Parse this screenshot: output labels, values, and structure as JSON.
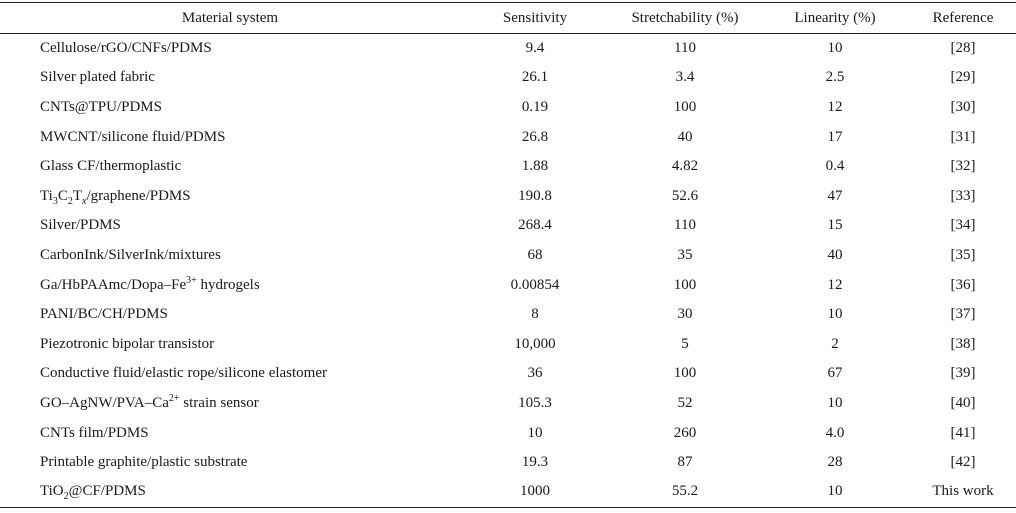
{
  "table": {
    "headers": {
      "material": "Material system",
      "sensitivity": "Sensitivity",
      "stretchability": "Stretchability (%)",
      "linearity": "Linearity (%)",
      "reference": "Reference"
    },
    "rows": [
      {
        "material": "Cellulose/rGO/CNFs/PDMS",
        "sensitivity": "9.4",
        "stretchability": "110",
        "linearity": "10",
        "reference": "[28]"
      },
      {
        "material": "Silver plated fabric",
        "sensitivity": "26.1",
        "stretchability": "3.4",
        "linearity": "2.5",
        "reference": "[29]"
      },
      {
        "material": "CNTs@TPU/PDMS",
        "sensitivity": "0.19",
        "stretchability": "100",
        "linearity": "12",
        "reference": "[30]"
      },
      {
        "material": "MWCNT/silicone fluid/PDMS",
        "sensitivity": "26.8",
        "stretchability": "40",
        "linearity": "17",
        "reference": "[31]"
      },
      {
        "material": "Glass CF/thermoplastic",
        "sensitivity": "1.88",
        "stretchability": "4.82",
        "linearity": "0.4",
        "reference": "[32]"
      },
      {
        "material_parts": [
          "Ti",
          "3",
          "C",
          "2",
          "T",
          "x",
          "/graphene/PDMS"
        ],
        "sensitivity": "190.8",
        "stretchability": "52.6",
        "linearity": "47",
        "reference": "[33]"
      },
      {
        "material": "Silver/PDMS",
        "sensitivity": "268.4",
        "stretchability": "110",
        "linearity": "15",
        "reference": "[34]"
      },
      {
        "material": "CarbonInk/SilverInk/mixtures",
        "sensitivity": "68",
        "stretchability": "35",
        "linearity": "40",
        "reference": "[35]"
      },
      {
        "material_parts": [
          "Ga/HbPAAmc/Dopa–Fe",
          "3+",
          " hydrogels"
        ],
        "sensitivity": "0.00854",
        "stretchability": "100",
        "linearity": "12",
        "reference": "[36]"
      },
      {
        "material": "PANI/BC/CH/PDMS",
        "sensitivity": "8",
        "stretchability": "30",
        "linearity": "10",
        "reference": "[37]"
      },
      {
        "material": "Piezotronic bipolar transistor",
        "sensitivity": "10,000",
        "stretchability": "5",
        "linearity": "2",
        "reference": "[38]"
      },
      {
        "material": "Conductive fluid/elastic rope/silicone elastomer",
        "sensitivity": "36",
        "stretchability": "100",
        "linearity": "67",
        "reference": "[39]"
      },
      {
        "material_parts": [
          "GO–AgNW/PVA–Ca",
          "2+",
          " strain sensor"
        ],
        "sensitivity": "105.3",
        "stretchability": "52",
        "linearity": "10",
        "reference": "[40]"
      },
      {
        "material": "CNTs film/PDMS",
        "sensitivity": "10",
        "stretchability": "260",
        "linearity": "4.0",
        "reference": "[41]"
      },
      {
        "material": "Printable graphite/plastic substrate",
        "sensitivity": "19.3",
        "stretchability": "87",
        "linearity": "28",
        "reference": "[42]"
      },
      {
        "material_parts": [
          "TiO",
          "2",
          "@CF/PDMS"
        ],
        "sensitivity": "1000",
        "stretchability": "55.2",
        "linearity": "10",
        "reference": "This work"
      }
    ]
  }
}
